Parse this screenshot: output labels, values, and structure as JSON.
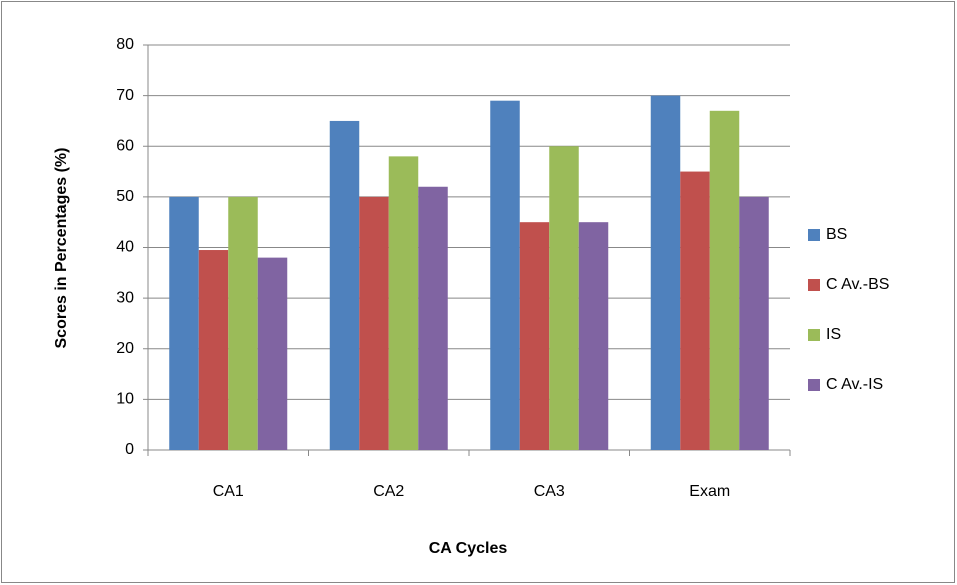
{
  "chart_data": {
    "type": "bar",
    "categories": [
      "CA1",
      "CA2",
      "CA3",
      "Exam"
    ],
    "series": [
      {
        "name": "BS",
        "color": "#4f81bd",
        "values": [
          50,
          65,
          69,
          70
        ]
      },
      {
        "name": "C Av.-BS",
        "color": "#c0504d",
        "values": [
          39.5,
          50,
          45,
          55
        ]
      },
      {
        "name": "IS",
        "color": "#9bbb59",
        "values": [
          50,
          58,
          60,
          67
        ]
      },
      {
        "name": "C Av.-IS",
        "color": "#8064a2",
        "values": [
          38,
          52,
          45,
          50
        ]
      }
    ],
    "xlabel": "CA Cycles",
    "ylabel": "Scores in Percentages (%)",
    "ylim": [
      0,
      80
    ],
    "yticks": [
      0,
      10,
      20,
      30,
      40,
      50,
      60,
      70,
      80
    ],
    "grid": true,
    "legend": "right"
  }
}
